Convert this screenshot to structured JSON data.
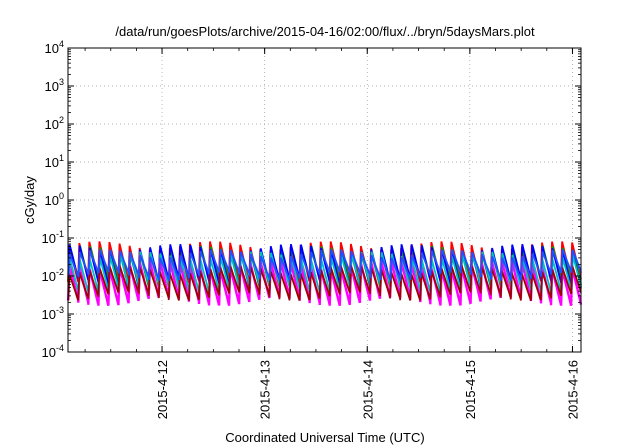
{
  "chart_data": {
    "type": "line",
    "title": "/data/run/goesPlots/archive/2015-04-16/02:00/flux/../bryn/5daysMars.plot",
    "xlabel": "Coordinated Universal Time (UTC)",
    "ylabel": "cGy/day",
    "yscale": "log",
    "ylim": [
      0.0001,
      10000
    ],
    "xlim_days": [
      "2015-04-11 02:00",
      "2015-04-16 02:00"
    ],
    "x_ticks": [
      "2015-4-12",
      "2015-4-13",
      "2015-4-14",
      "2015-4-15",
      "2015-4-16"
    ],
    "y_ticks": [
      {
        "base": "10",
        "exp": "-4"
      },
      {
        "base": "10",
        "exp": "-3"
      },
      {
        "base": "10",
        "exp": "-2"
      },
      {
        "base": "10",
        "exp": "-1"
      },
      {
        "base": "10",
        "exp": "0"
      },
      {
        "base": "10",
        "exp": "1"
      },
      {
        "base": "10",
        "exp": "2"
      },
      {
        "base": "10",
        "exp": "3"
      },
      {
        "base": "10",
        "exp": "4"
      }
    ],
    "grid": true,
    "legend": "none",
    "pattern": {
      "description": "sawtooth, about 51 cycles (~0.098 day period); sharp rise then decay",
      "cycle_count": 51
    },
    "series": [
      {
        "color": "#ff0000",
        "peak": 0.065,
        "trough": 0.007
      },
      {
        "color": "#00a000",
        "peak": 0.05,
        "trough": 0.006
      },
      {
        "color": "#0000ff",
        "peak": 0.055,
        "trough": 0.0065
      },
      {
        "color": "#ff00ff",
        "peak": 0.02,
        "trough": 0.0022
      },
      {
        "color": "#00c0c0",
        "peak": 0.035,
        "trough": 0.0045
      },
      {
        "color": "#a00000",
        "peak": 0.015,
        "trough": 0.003
      },
      {
        "color": "#2050ff",
        "peak": 0.04,
        "trough": 0.01
      }
    ]
  }
}
